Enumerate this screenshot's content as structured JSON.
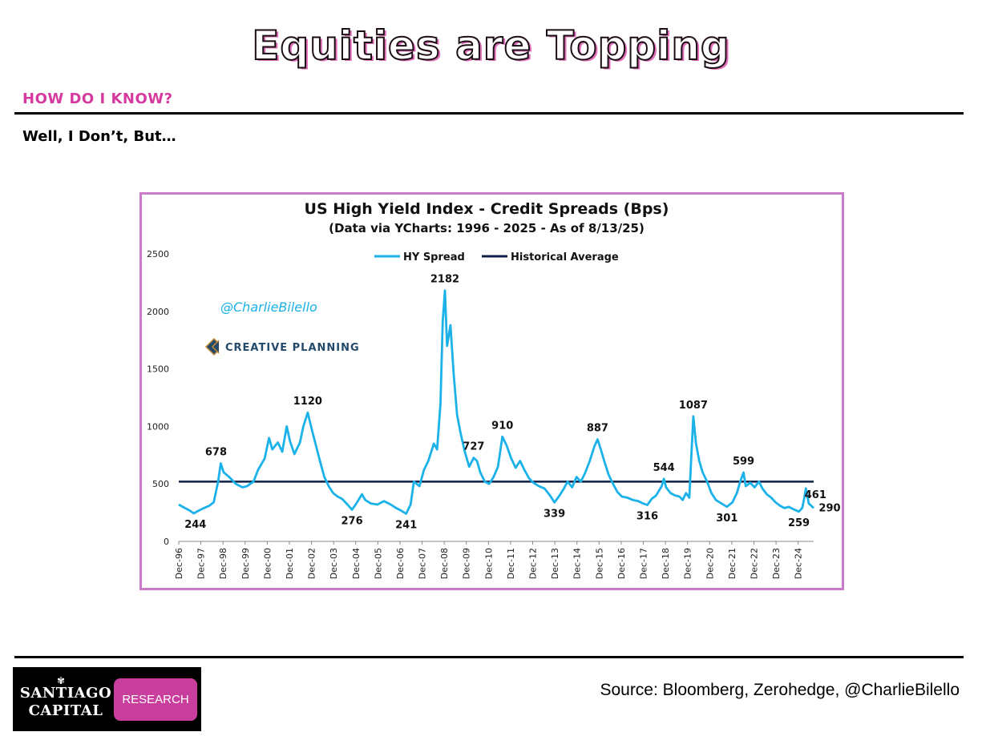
{
  "page": {
    "title": "Equities are Topping",
    "section_label": "HOW DO I KNOW?",
    "subheading": "Well, I Don’t, But…",
    "source": "Source: Bloomberg, Zerohedge, @CharlieBilello"
  },
  "logo": {
    "name_line1": "SANTIAGO",
    "name_line2": "CAPITAL",
    "badge": "RESEARCH",
    "badge_color": "#c93d9c",
    "symbol": "shell-icon"
  },
  "chart_data": {
    "type": "line",
    "title": "US High Yield Index - Credit Spreads (Bps)",
    "subtitle": "(Data via YCharts: 1996 - 2025 - As of 8/13/25)",
    "watermark_handle": "@CharlieBilello",
    "watermark_brand": "CREATIVE PLANNING",
    "ylim": [
      0,
      2500
    ],
    "yticks": [
      0,
      500,
      1000,
      1500,
      2000,
      2500
    ],
    "xlim": [
      1996.92,
      2025.62
    ],
    "xticks": [
      "Dec-96",
      "Dec-97",
      "Dec-98",
      "Dec-99",
      "Dec-00",
      "Dec-01",
      "Dec-02",
      "Dec-03",
      "Dec-04",
      "Dec-05",
      "Dec-06",
      "Dec-07",
      "Dec-08",
      "Dec-09",
      "Dec-10",
      "Dec-11",
      "Dec-12",
      "Dec-13",
      "Dec-14",
      "Dec-15",
      "Dec-16",
      "Dec-17",
      "Dec-18",
      "Dec-19",
      "Dec-20",
      "Dec-21",
      "Dec-22",
      "Dec-23",
      "Dec-24"
    ],
    "legend": {
      "position": "top-center"
    },
    "colors": {
      "spread": "#1ab2e8",
      "average": "#0f1f45"
    },
    "series": [
      {
        "name": "HY Spread",
        "points": [
          [
            1996.92,
            320
          ],
          [
            1997.15,
            295
          ],
          [
            1997.4,
            270
          ],
          [
            1997.6,
            244
          ],
          [
            1997.8,
            265
          ],
          [
            1998.0,
            285
          ],
          [
            1998.3,
            310
          ],
          [
            1998.5,
            340
          ],
          [
            1998.7,
            520
          ],
          [
            1998.82,
            678
          ],
          [
            1998.95,
            600
          ],
          [
            1999.2,
            560
          ],
          [
            1999.5,
            500
          ],
          [
            1999.8,
            470
          ],
          [
            2000.0,
            480
          ],
          [
            2000.3,
            520
          ],
          [
            2000.5,
            620
          ],
          [
            2000.8,
            720
          ],
          [
            2001.0,
            900
          ],
          [
            2001.15,
            800
          ],
          [
            2001.4,
            860
          ],
          [
            2001.6,
            780
          ],
          [
            2001.8,
            1000
          ],
          [
            2001.95,
            870
          ],
          [
            2002.15,
            760
          ],
          [
            2002.4,
            860
          ],
          [
            2002.55,
            1000
          ],
          [
            2002.75,
            1120
          ],
          [
            2002.9,
            1000
          ],
          [
            2003.1,
            850
          ],
          [
            2003.3,
            700
          ],
          [
            2003.5,
            560
          ],
          [
            2003.7,
            480
          ],
          [
            2003.9,
            420
          ],
          [
            2004.1,
            390
          ],
          [
            2004.3,
            370
          ],
          [
            2004.5,
            330
          ],
          [
            2004.75,
            276
          ],
          [
            2004.95,
            330
          ],
          [
            2005.2,
            410
          ],
          [
            2005.35,
            360
          ],
          [
            2005.6,
            330
          ],
          [
            2005.9,
            320
          ],
          [
            2006.2,
            350
          ],
          [
            2006.5,
            320
          ],
          [
            2006.75,
            290
          ],
          [
            2006.95,
            270
          ],
          [
            2007.2,
            241
          ],
          [
            2007.4,
            320
          ],
          [
            2007.55,
            520
          ],
          [
            2007.8,
            480
          ],
          [
            2008.0,
            620
          ],
          [
            2008.2,
            700
          ],
          [
            2008.45,
            850
          ],
          [
            2008.6,
            800
          ],
          [
            2008.75,
            1200
          ],
          [
            2008.85,
            1900
          ],
          [
            2008.95,
            2182
          ],
          [
            2009.05,
            1700
          ],
          [
            2009.2,
            1880
          ],
          [
            2009.35,
            1450
          ],
          [
            2009.5,
            1100
          ],
          [
            2009.65,
            950
          ],
          [
            2009.85,
            780
          ],
          [
            2010.05,
            650
          ],
          [
            2010.25,
            727
          ],
          [
            2010.4,
            700
          ],
          [
            2010.55,
            600
          ],
          [
            2010.75,
            520
          ],
          [
            2010.95,
            500
          ],
          [
            2011.15,
            560
          ],
          [
            2011.35,
            650
          ],
          [
            2011.55,
            910
          ],
          [
            2011.75,
            830
          ],
          [
            2011.95,
            720
          ],
          [
            2012.15,
            640
          ],
          [
            2012.35,
            700
          ],
          [
            2012.55,
            620
          ],
          [
            2012.75,
            550
          ],
          [
            2012.95,
            510
          ],
          [
            2013.2,
            480
          ],
          [
            2013.45,
            460
          ],
          [
            2013.7,
            400
          ],
          [
            2013.9,
            339
          ],
          [
            2014.1,
            390
          ],
          [
            2014.3,
            450
          ],
          [
            2014.5,
            520
          ],
          [
            2014.7,
            470
          ],
          [
            2014.9,
            560
          ],
          [
            2015.1,
            520
          ],
          [
            2015.3,
            600
          ],
          [
            2015.5,
            700
          ],
          [
            2015.7,
            820
          ],
          [
            2015.85,
            887
          ],
          [
            2016.0,
            800
          ],
          [
            2016.15,
            700
          ],
          [
            2016.35,
            580
          ],
          [
            2016.55,
            500
          ],
          [
            2016.75,
            430
          ],
          [
            2016.95,
            390
          ],
          [
            2017.2,
            380
          ],
          [
            2017.45,
            360
          ],
          [
            2017.7,
            350
          ],
          [
            2017.9,
            330
          ],
          [
            2018.1,
            316
          ],
          [
            2018.3,
            370
          ],
          [
            2018.5,
            400
          ],
          [
            2018.75,
            480
          ],
          [
            2018.85,
            544
          ],
          [
            2018.95,
            470
          ],
          [
            2019.15,
            420
          ],
          [
            2019.35,
            400
          ],
          [
            2019.55,
            390
          ],
          [
            2019.7,
            360
          ],
          [
            2019.85,
            420
          ],
          [
            2020.0,
            380
          ],
          [
            2020.08,
            700
          ],
          [
            2020.18,
            1087
          ],
          [
            2020.3,
            850
          ],
          [
            2020.45,
            700
          ],
          [
            2020.6,
            600
          ],
          [
            2020.8,
            520
          ],
          [
            2021.0,
            420
          ],
          [
            2021.2,
            360
          ],
          [
            2021.45,
            330
          ],
          [
            2021.7,
            301
          ],
          [
            2021.95,
            340
          ],
          [
            2022.15,
            420
          ],
          [
            2022.3,
            520
          ],
          [
            2022.45,
            599
          ],
          [
            2022.55,
            480
          ],
          [
            2022.75,
            510
          ],
          [
            2022.95,
            470
          ],
          [
            2023.15,
            520
          ],
          [
            2023.3,
            460
          ],
          [
            2023.5,
            410
          ],
          [
            2023.7,
            380
          ],
          [
            2023.9,
            340
          ],
          [
            2024.1,
            310
          ],
          [
            2024.3,
            290
          ],
          [
            2024.5,
            300
          ],
          [
            2024.7,
            280
          ],
          [
            2024.95,
            259
          ],
          [
            2025.1,
            290
          ],
          [
            2025.2,
            380
          ],
          [
            2025.27,
            461
          ],
          [
            2025.4,
            330
          ],
          [
            2025.62,
            290
          ]
        ]
      },
      {
        "name": "Historical Average",
        "value": 520
      }
    ],
    "labels": [
      {
        "text": "244",
        "x": 1997.6,
        "y": 244
      },
      {
        "text": "678",
        "x": 1998.82,
        "y": 678
      },
      {
        "text": "1120",
        "x": 2002.75,
        "y": 1120
      },
      {
        "text": "276",
        "x": 2004.75,
        "y": 276
      },
      {
        "text": "241",
        "x": 2007.2,
        "y": 241
      },
      {
        "text": "2182",
        "x": 2008.95,
        "y": 2182
      },
      {
        "text": "727",
        "x": 2010.25,
        "y": 727
      },
      {
        "text": "910",
        "x": 2011.55,
        "y": 910
      },
      {
        "text": "339",
        "x": 2013.9,
        "y": 339
      },
      {
        "text": "887",
        "x": 2015.85,
        "y": 887
      },
      {
        "text": "316",
        "x": 2018.1,
        "y": 316
      },
      {
        "text": "544",
        "x": 2018.85,
        "y": 544
      },
      {
        "text": "1087",
        "x": 2020.18,
        "y": 1087
      },
      {
        "text": "301",
        "x": 2021.7,
        "y": 301
      },
      {
        "text": "599",
        "x": 2022.45,
        "y": 599
      },
      {
        "text": "259",
        "x": 2024.95,
        "y": 259
      },
      {
        "text": "461",
        "x": 2025.27,
        "y": 461
      },
      {
        "text": "290",
        "x": 2025.62,
        "y": 290
      }
    ]
  }
}
